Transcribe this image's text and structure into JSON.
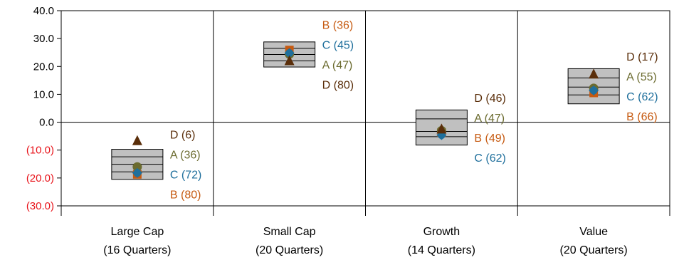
{
  "chart_data": {
    "type": "floating-bar",
    "title": "",
    "xlabel": "",
    "ylabel": "",
    "ylim": [
      -30,
      40
    ],
    "yticks": [
      40,
      30,
      20,
      10,
      0,
      -10,
      -20,
      -30
    ],
    "ytick_labels": [
      "40.0",
      "30.0",
      "20.0",
      "10.0",
      "0.0",
      "(10.0)",
      "(20.0)",
      "(30.0)"
    ],
    "negative_tick_color": "#e8141b",
    "positive_tick_color": "#000000",
    "grid": false,
    "box_fill": "#c0c0c0",
    "series_colors": {
      "A": "#6b6b2f",
      "B": "#c65a11",
      "C": "#1f6f9c",
      "D": "#5a2e0a"
    },
    "categories": [
      {
        "line1": "Large Cap",
        "line2": "(16 Quarters)",
        "range": [
          -20.5,
          -9.7
        ],
        "lines": [
          -12.4,
          -15.1,
          -17.8
        ],
        "points": {
          "D": -6.7,
          "A": -16.0,
          "C": -18.2,
          "B": -18.7
        },
        "labels": [
          {
            "text": "D (6)",
            "series": "D"
          },
          {
            "text": "A (36)",
            "series": "A"
          },
          {
            "text": "C (72)",
            "series": "C"
          },
          {
            "text": "B (80)",
            "series": "B"
          }
        ]
      },
      {
        "line1": "Small Cap",
        "line2": "(20 Quarters)",
        "range": [
          19.8,
          28.8
        ],
        "lines": [
          26.5,
          24.3,
          22.0
        ],
        "points": {
          "B": 25.9,
          "C": 24.8,
          "A": 24.4,
          "D": 22.0
        },
        "labels": [
          {
            "text": "B (36)",
            "series": "B"
          },
          {
            "text": "C (45)",
            "series": "C"
          },
          {
            "text": "A (47)",
            "series": "A"
          },
          {
            "text": "D (80)",
            "series": "D"
          }
        ]
      },
      {
        "line1": "Growth",
        "line2": "(14 Quarters)",
        "range": [
          -8.2,
          4.4
        ],
        "lines": [
          1.2,
          -3.3,
          -5.2
        ],
        "points": {
          "D": -2.5,
          "A": -3.0,
          "B": -3.7,
          "C": -4.6
        },
        "labels": [
          {
            "text": "D (46)",
            "series": "D"
          },
          {
            "text": "A (47)",
            "series": "A"
          },
          {
            "text": "B (49)",
            "series": "B"
          },
          {
            "text": "C (62)",
            "series": "C"
          }
        ]
      },
      {
        "line1": "Value",
        "line2": "(20 Quarters)",
        "range": [
          6.6,
          19.2
        ],
        "lines": [
          15.9,
          12.6,
          9.8
        ],
        "points": {
          "D": 17.2,
          "A": 12.2,
          "C": 11.4,
          "B": 10.5
        },
        "labels": [
          {
            "text": "D (17)",
            "series": "D"
          },
          {
            "text": "A (55)",
            "series": "A"
          },
          {
            "text": "C (62)",
            "series": "C"
          },
          {
            "text": "B (66)",
            "series": "B"
          }
        ]
      }
    ]
  }
}
